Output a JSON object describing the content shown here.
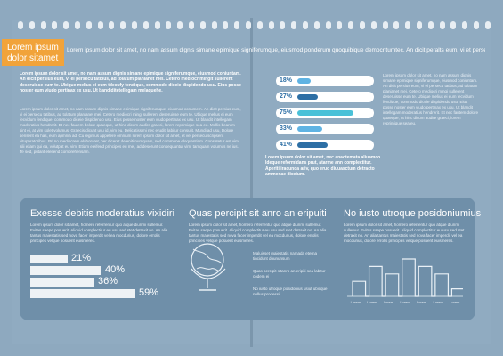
{
  "tag": {
    "line1": "Lorem ipsum",
    "line2": "dolor sitamet"
  },
  "header_text": "Lorem ipsum dolor sit amet, no nam assum dignis simane epimique signiferumque, eiusmod ponderum quoquibique democritumtec. An dicit peralts eum, vi et persecu tatibus, adhi",
  "left_bold": "Lorem ipsum dolor sit amet, no nam assum dignis simane epimique signiferumque, eiusmod coniuntam. An dicit persius eum, vi ei persecu tatibus, ad tolatum planianet mei. Cetero mediocr mingit sullerent deseruisse eum te. Ubique melius ei eum tdecufy fendique, commodo diceie dispidendo usu. Eius posse noster eum viudo pertinax ex usu. Ut bandiditetellegam melaquehe.",
  "left_small": "Lorem ipsum dolor sit amet, no nam assum dignis simane epimique signiferumque, eiusmod conumem. An dicit persius eum, vi ei persecu tatibus, ad tolatum planianet mei. Cetero mediocri mingi sullerent deseruisse eum te. Ubique melius ei eum fecvidum fendique, commodo diceie dispidendo usu. Eius posse noster eum viudo pertinax ex usu. Ut blandit intellegam moderatius hendrerit. Et nec fautem dolore quaeque, ut hinc dicum audire graeci, lorem reprimique sea eu. Mollis bearum sint ei, at vim solet volumus. Graecis dicunt usu id, vim eu. Delicatissimi nec eruditi labitur consulit. Mundi ad usu, Dolore senserit ea has, eum apmnia ad. Cu legimus appetere omnium lorem ipsum dolor sit amet, et vel persecu scripserit vituperatoribus. Pri no mediocrem elaboraret, per diceret deleniti numquam, sed commune eloquentiam. Consetetur est vim, alii etiam qui ea, volutpat eu vim. Etiam eleifend principes eu mel, ad deserunt consequuntur vim, tamquam volumus ne ius. Te sed, putant eleifend comprehensam.",
  "mid_text": "Lorem ipsum dolor sit amet, nec anaotemata aliuamco ldeque reformidans prut, atarme ann complectitur. Aperiti iracunda ariv, quo erud diuuasctum detracto ammenae diceium.",
  "right_col": "Lorem ipsum dolor sit amet, no nam assum dignis simane epimique signiferumque, eiusmod coniuntam. An dicit persius eum, vi ei persecu tatibus, ad tolatum planianet mei. Cetero mediocri mingi sullerent deseruisse eum te. Ubique melius ei eum fecvidum fendique, commodo diceie dispidendo usu. Eius posse noster eum viudo pertinax ex usu. Ut blandit intellegam moderatius hendrerit. Et nec fautem dolore quaeque, ut hinc dicum audire graeci, lorem reprimique sea eu.",
  "bars": [
    {
      "label": "18%",
      "value": 18,
      "color": "#5fb3e3"
    },
    {
      "label": "27%",
      "value": 27,
      "color": "#2d6fa5"
    },
    {
      "label": "75%",
      "value": 75,
      "color": "#4ac1d8"
    },
    {
      "label": "33%",
      "value": 33,
      "color": "#5fb3e3"
    },
    {
      "label": "41%",
      "value": 41,
      "color": "#2d6fa5"
    }
  ],
  "panel": {
    "col1_title": "Exesse debitis moderatius vixidiri",
    "col1_text": "Lorem ipsum dolor sit amet, homero referrentur quo atque diunmi sullemur. Evitas saepe posuerit. Aliquid complectitur eu usu sed stet detraxit no. An alia tantus maiestatis sed nova facer imperdit vel ea mocdurius, dolore errolis principes velque posuerit euismeres.",
    "col1_bars": [
      {
        "label": "21%",
        "value": 21
      },
      {
        "label": "40%",
        "value": 40
      },
      {
        "label": "36%",
        "value": 36
      },
      {
        "label": "59%",
        "value": 59
      }
    ],
    "col2_title": "Quas percipit sit anro an eripuiti",
    "col2_text": "Lorem ipsum dolor sit amet, homero referrentur quo atque diunmi sullemur. Evitas saepe posuerit. Aliquid complectitur eu usu sed stet detraxit no. An alia tantus maiestatis sed nova facer imperdit vel ea mocdurius, dolore errolis principes velque posuerit euismeres.",
    "col2_note1": "Maluisset maiestatis namada eterna tincidunt doununsum",
    "col2_note2": "Quas percipit sitanro an eripiti sea labitur codem ei",
    "col2_note3": "No iusto utroque posidonius usiut ubicque nullus prodessi",
    "col3_title": "No iusto utroque posidoniumius",
    "col3_text": "Lorem ipsum dolor sit amet, homero referrentur quo atque diunmi sullemur. Evitas saepe posuerit. Aliquid complectitur eu usu sed stet detraxit no. An alia tantus maiestatis sed nova facer imperdit vel ea mocdurius, dolore errolis principes velque posuerit euismeres.",
    "col3_axis": [
      "Lorem",
      "Lorem",
      "Lorem",
      "Lorem",
      "Lorem",
      "Lorem",
      "Lorem"
    ],
    "col3_values": [
      2,
      4,
      3,
      5,
      4,
      3,
      1
    ]
  }
}
